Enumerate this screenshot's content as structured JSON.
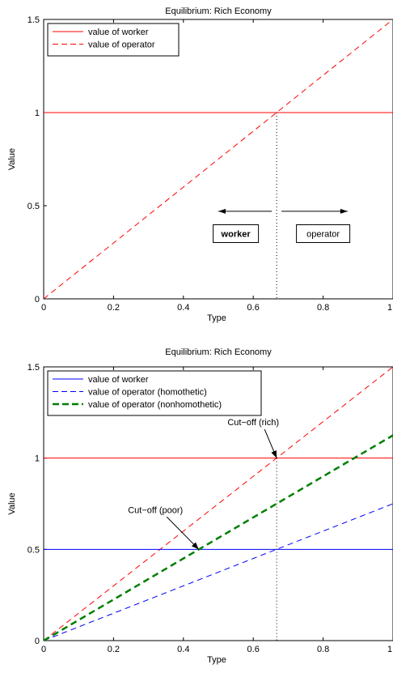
{
  "chart_data": [
    {
      "type": "line",
      "title": "Equilibrium: Rich Economy",
      "xlabel": "Type",
      "ylabel": "Value",
      "xlim": [
        0,
        1
      ],
      "ylim": [
        0,
        1.5
      ],
      "xticks": [
        "0",
        "0.2",
        "0.4",
        "0.6",
        "0.8",
        "1"
      ],
      "yticks": [
        "0",
        "0.5",
        "1",
        "1.5"
      ],
      "legend_position": "top-left",
      "series": [
        {
          "name": "value of worker",
          "x": [
            0,
            1
          ],
          "y": [
            1,
            1
          ],
          "color": "#ff0000",
          "style": "solid",
          "width": 1
        },
        {
          "name": "value of operator",
          "x": [
            0,
            1
          ],
          "y": [
            0,
            1.5
          ],
          "color": "#ff0000",
          "style": "dashed",
          "width": 1
        }
      ],
      "cutoff_x": 0.667,
      "arrows": [
        {
          "from": 0.667,
          "to": 0.5,
          "y": 0.47
        },
        {
          "from": 0.667,
          "to": 0.87,
          "y": 0.47
        }
      ],
      "boxes": [
        {
          "text": "worker",
          "bold": true,
          "x": 0.55,
          "y": 0.35
        },
        {
          "text": "operator",
          "bold": false,
          "x": 0.8,
          "y": 0.35
        }
      ]
    },
    {
      "type": "line",
      "title": "Equilibrium: Rich Economy",
      "xlabel": "Type",
      "ylabel": "Value",
      "xlim": [
        0,
        1
      ],
      "ylim": [
        0,
        1.5
      ],
      "xticks": [
        "0",
        "0.2",
        "0.4",
        "0.6",
        "0.8",
        "1"
      ],
      "yticks": [
        "0",
        "0.5",
        "1",
        "1.5"
      ],
      "legend_position": "top-left",
      "series": [
        {
          "name": "value of worker",
          "x": [
            0,
            1
          ],
          "y": [
            0.5,
            0.5
          ],
          "color": "#0000ff",
          "style": "solid",
          "width": 1
        },
        {
          "name": "value of operator (homothetic)",
          "x": [
            0,
            1
          ],
          "y": [
            0,
            0.75
          ],
          "color": "#0000ff",
          "style": "dashed",
          "width": 1
        },
        {
          "name": "value of operator (nonhomothetic)",
          "x": [
            0,
            1
          ],
          "y": [
            0,
            1.125
          ],
          "color": "#007f00",
          "style": "dashed",
          "width": 2.5
        }
      ],
      "extra_lines": [
        {
          "x": [
            0,
            1
          ],
          "y": [
            1,
            1
          ],
          "color": "#ff0000",
          "style": "solid",
          "width": 1
        },
        {
          "x": [
            0,
            1
          ],
          "y": [
            0,
            1.5
          ],
          "color": "#ff0000",
          "style": "dashed",
          "width": 1
        }
      ],
      "cutoff_x": 0.667,
      "annotations": [
        {
          "text": "Cut−off (rich)",
          "text_x": 0.6,
          "text_y": 1.18,
          "point_x": 0.667,
          "point_y": 1.0
        },
        {
          "text": "Cut−off (poor)",
          "text_x": 0.32,
          "text_y": 0.7,
          "point_x": 0.444,
          "point_y": 0.5
        }
      ]
    }
  ]
}
